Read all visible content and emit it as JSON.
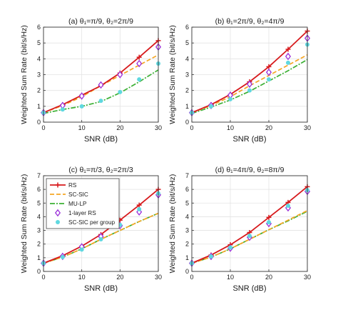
{
  "colors": {
    "RS": "#d7191c",
    "SC-SIC": "#f5a623",
    "MU-LP": "#3cb034",
    "1-layer RS": "#9b30d9",
    "SC-SIC per group": "#5fd8e0"
  },
  "legend": {
    "placement": "top-left of panel (c)",
    "entries": [
      {
        "label": "RS",
        "style": "line-plus"
      },
      {
        "label": "SC-SIC",
        "style": "dashed"
      },
      {
        "label": "MU-LP",
        "style": "dashdot"
      },
      {
        "label": "1-layer RS",
        "style": "diamond"
      },
      {
        "label": "SC-SIC per group",
        "style": "circle"
      }
    ]
  },
  "chart_data": [
    {
      "type": "line",
      "panel_title": "(a) θ₁=π/9, θ₂=2π/9",
      "xlabel": "SNR (dB)",
      "ylabel": "Weighted Sum Rate (bit/s/Hz)",
      "xlim": [
        0,
        30
      ],
      "ylim": [
        0,
        6
      ],
      "xticks": [
        "0",
        "10",
        "20",
        "30"
      ],
      "yticks": [
        "0",
        "1",
        "2",
        "3",
        "4",
        "5",
        "6"
      ],
      "grid": true,
      "x": [
        0,
        5,
        10,
        15,
        20,
        25,
        30
      ],
      "series": [
        {
          "name": "RS",
          "values": [
            0.6,
            1.1,
            1.7,
            2.3,
            3.1,
            4.1,
            5.15
          ]
        },
        {
          "name": "SC-SIC",
          "values": [
            0.6,
            1.05,
            1.6,
            2.3,
            2.95,
            3.6,
            4.25
          ]
        },
        {
          "name": "MU-LP",
          "values": [
            0.55,
            0.8,
            1.0,
            1.3,
            1.85,
            2.55,
            3.3
          ]
        },
        {
          "name": "1-layer RS",
          "values": [
            0.6,
            1.05,
            1.65,
            2.35,
            3.0,
            3.7,
            4.75
          ]
        },
        {
          "name": "SC-SIC per group",
          "values": [
            0.6,
            0.8,
            1.0,
            1.35,
            1.9,
            2.7,
            3.7
          ]
        }
      ]
    },
    {
      "type": "line",
      "panel_title": "(b) θ₁=2π/9, θ₂=4π/9",
      "xlabel": "SNR (dB)",
      "ylabel": "Weighted Sum Rate (bit/s/Hz)",
      "xlim": [
        0,
        30
      ],
      "ylim": [
        0,
        6
      ],
      "xticks": [
        "0",
        "10",
        "20",
        "30"
      ],
      "yticks": [
        "0",
        "1",
        "2",
        "3",
        "4",
        "5",
        "6"
      ],
      "grid": true,
      "x": [
        0,
        5,
        10,
        15,
        20,
        25,
        30
      ],
      "series": [
        {
          "name": "RS",
          "values": [
            0.6,
            1.1,
            1.75,
            2.55,
            3.5,
            4.6,
            5.75
          ]
        },
        {
          "name": "SC-SIC",
          "values": [
            0.6,
            1.05,
            1.6,
            2.3,
            2.95,
            3.6,
            4.25
          ]
        },
        {
          "name": "MU-LP",
          "values": [
            0.55,
            0.95,
            1.4,
            1.95,
            2.6,
            3.25,
            3.95
          ]
        },
        {
          "name": "1-layer RS",
          "values": [
            0.6,
            1.05,
            1.7,
            2.4,
            3.15,
            4.15,
            5.3
          ]
        },
        {
          "name": "SC-SIC per group",
          "values": [
            0.6,
            1.0,
            1.45,
            2.0,
            2.7,
            3.75,
            4.9
          ]
        }
      ]
    },
    {
      "type": "line",
      "panel_title": "(c) θ₁=π/3, θ₂=2π/3",
      "xlabel": "SNR (dB)",
      "ylabel": "Weighted Sum Rate (bit/s/Hz)",
      "xlim": [
        0,
        30
      ],
      "ylim": [
        0,
        7
      ],
      "xticks": [
        "0",
        "10",
        "20",
        "30"
      ],
      "yticks": [
        "0",
        "1",
        "2",
        "3",
        "4",
        "5",
        "6",
        "7"
      ],
      "grid": true,
      "x": [
        0,
        5,
        10,
        15,
        20,
        25,
        30
      ],
      "series": [
        {
          "name": "RS",
          "values": [
            0.6,
            1.15,
            1.85,
            2.7,
            3.75,
            4.85,
            6.0
          ]
        },
        {
          "name": "SC-SIC",
          "values": [
            0.6,
            1.05,
            1.65,
            2.35,
            3.0,
            3.65,
            4.25
          ]
        },
        {
          "name": "MU-LP",
          "values": [
            0.6,
            1.05,
            1.65,
            2.35,
            3.0,
            3.65,
            4.25
          ]
        },
        {
          "name": "1-layer RS",
          "values": [
            0.6,
            1.1,
            1.8,
            2.55,
            3.35,
            4.35,
            5.6
          ]
        },
        {
          "name": "SC-SIC per group",
          "values": [
            0.6,
            1.05,
            1.6,
            2.35,
            3.4,
            4.55,
            5.7
          ]
        }
      ]
    },
    {
      "type": "line",
      "panel_title": "(d) θ₁=4π/9, θ₂=8π/9",
      "xlabel": "SNR (dB)",
      "ylabel": "Weighted Sum Rate (bit/s/Hz)",
      "xlim": [
        0,
        30
      ],
      "ylim": [
        0,
        7
      ],
      "xticks": [
        "0",
        "10",
        "20",
        "30"
      ],
      "yticks": [
        "0",
        "1",
        "2",
        "3",
        "4",
        "5",
        "6",
        "7"
      ],
      "grid": true,
      "x": [
        0,
        5,
        10,
        15,
        20,
        25,
        30
      ],
      "series": [
        {
          "name": "RS",
          "values": [
            0.6,
            1.2,
            1.95,
            2.85,
            3.95,
            5.05,
            6.2
          ]
        },
        {
          "name": "SC-SIC",
          "values": [
            0.6,
            1.05,
            1.65,
            2.35,
            3.05,
            3.75,
            4.45
          ]
        },
        {
          "name": "MU-LP",
          "values": [
            0.6,
            1.05,
            1.65,
            2.35,
            3.05,
            3.7,
            4.4
          ]
        },
        {
          "name": "1-layer RS",
          "values": [
            0.6,
            1.1,
            1.7,
            2.5,
            3.5,
            4.65,
            5.85
          ]
        },
        {
          "name": "SC-SIC per group",
          "values": [
            0.6,
            1.1,
            1.75,
            2.6,
            3.6,
            4.8,
            5.95
          ]
        }
      ]
    }
  ]
}
